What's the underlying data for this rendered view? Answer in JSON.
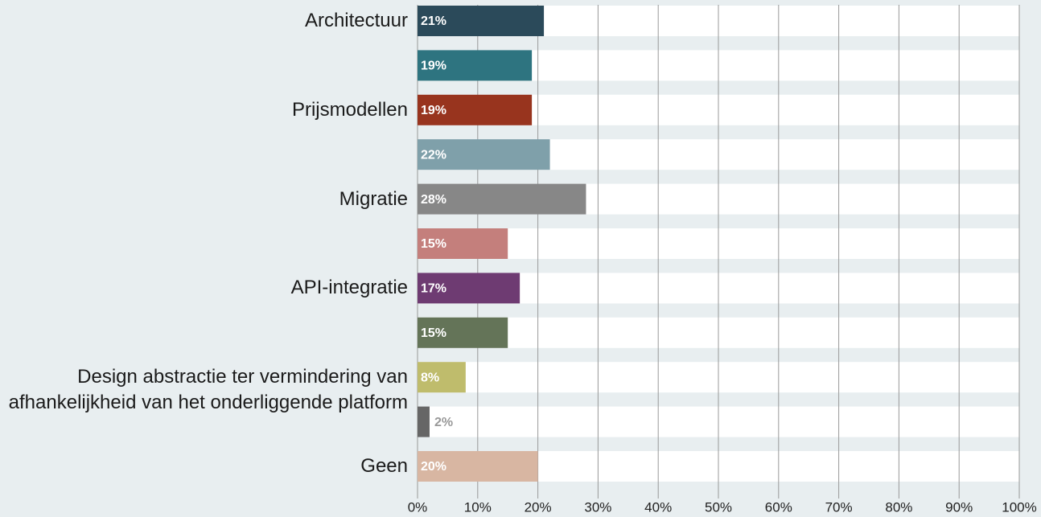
{
  "chart_data": {
    "type": "bar",
    "orientation": "horizontal",
    "categories": [
      "Architectuur",
      null,
      "Prijsmodellen",
      null,
      "Migratie",
      null,
      "API-integratie",
      null,
      "Design abstractie ter vermindering van afhankelijkheid van het onderliggende platform",
      null,
      "Geen"
    ],
    "values": [
      21,
      19,
      19,
      22,
      28,
      15,
      17,
      15,
      8,
      2,
      20
    ],
    "value_labels": [
      "21%",
      "19%",
      "19%",
      "22%",
      "28%",
      "15%",
      "17%",
      "15%",
      "8%",
      "2%",
      "20%"
    ],
    "colors": [
      "#2b4a5a",
      "#2e7480",
      "#98341e",
      "#7fa0aa",
      "#878787",
      "#c47f7c",
      "#6e3b72",
      "#647458",
      "#bfbc6c",
      "#666666",
      "#d8b6a2"
    ],
    "xlim": [
      0,
      100
    ],
    "xticks": [
      {
        "value": 0,
        "label": "0%"
      },
      {
        "value": 10,
        "label": "10%"
      },
      {
        "value": 20,
        "label": "20%"
      },
      {
        "value": 30,
        "label": "30%"
      },
      {
        "value": 40,
        "label": "40%"
      },
      {
        "value": 50,
        "label": "50%"
      },
      {
        "value": 60,
        "label": "60%"
      },
      {
        "value": 70,
        "label": "70%"
      },
      {
        "value": 80,
        "label": "80%"
      },
      {
        "value": 90,
        "label": "90%"
      },
      {
        "value": 100,
        "label": "100%"
      }
    ],
    "grid": true
  }
}
